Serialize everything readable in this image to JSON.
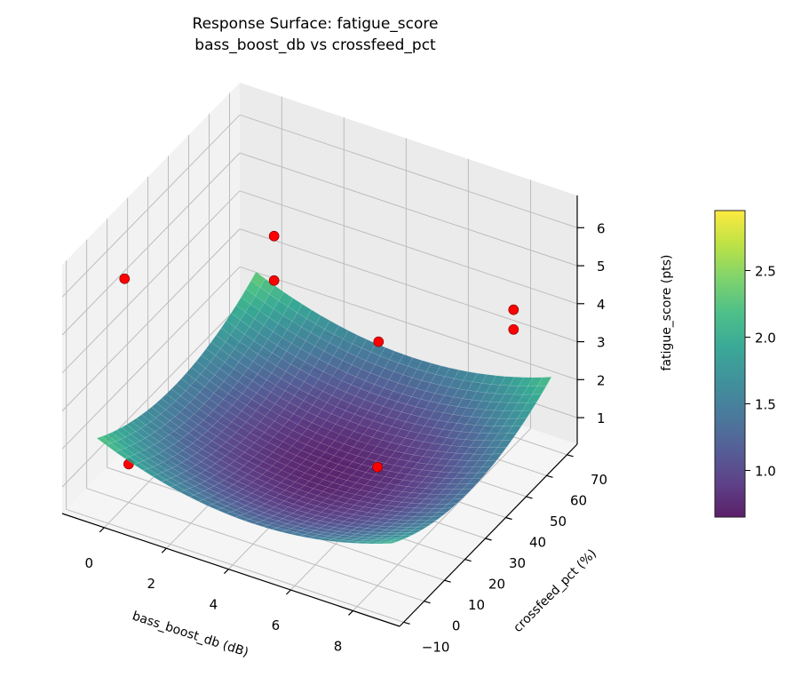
{
  "chart_data": {
    "type": "surface3d",
    "title": "Response Surface: fatigue_score",
    "subtitle": "bass_boost_db vs crossfeed_pct",
    "xlabel": "bass_boost_db (dB)",
    "ylabel": "crossfeed_pct (%)",
    "zlabel": "fatigue_score (pts)",
    "xlim": [
      -1.35,
      9.5
    ],
    "ylim": [
      -12,
      75
    ],
    "zlim": [
      0.3,
      6.85
    ],
    "xticks": [
      0,
      2,
      4,
      6,
      8
    ],
    "yticks": [
      -10,
      0,
      10,
      20,
      30,
      40,
      50,
      60,
      70
    ],
    "zticks": [
      1,
      2,
      3,
      4,
      5,
      6
    ],
    "grid": true,
    "surface": {
      "colormap": "viridis",
      "x_range": [
        -0.5,
        9
      ],
      "y_range": [
        -8,
        70
      ],
      "model": {
        "min_z": 0.7,
        "x_center": 4.5,
        "y_center": 30,
        "x_coef": 0.035,
        "y_coef": 0.0005
      }
    },
    "points": {
      "color": "#ff0000",
      "x": [
        0,
        1,
        1,
        4.36,
        8.7,
        8.7,
        0,
        8
      ],
      "y": [
        -2,
        56,
        56,
        56,
        56,
        56,
        0,
        0
      ],
      "z": [
        6.3,
        4.5,
        3.33,
        2.64,
        4.67,
        4.15,
        1.31,
        3.42
      ]
    },
    "colorbar": {
      "vmin": 0.65,
      "vmax": 2.95,
      "ticks": [
        "1.0",
        "1.5",
        "2.0",
        "2.5"
      ]
    }
  }
}
